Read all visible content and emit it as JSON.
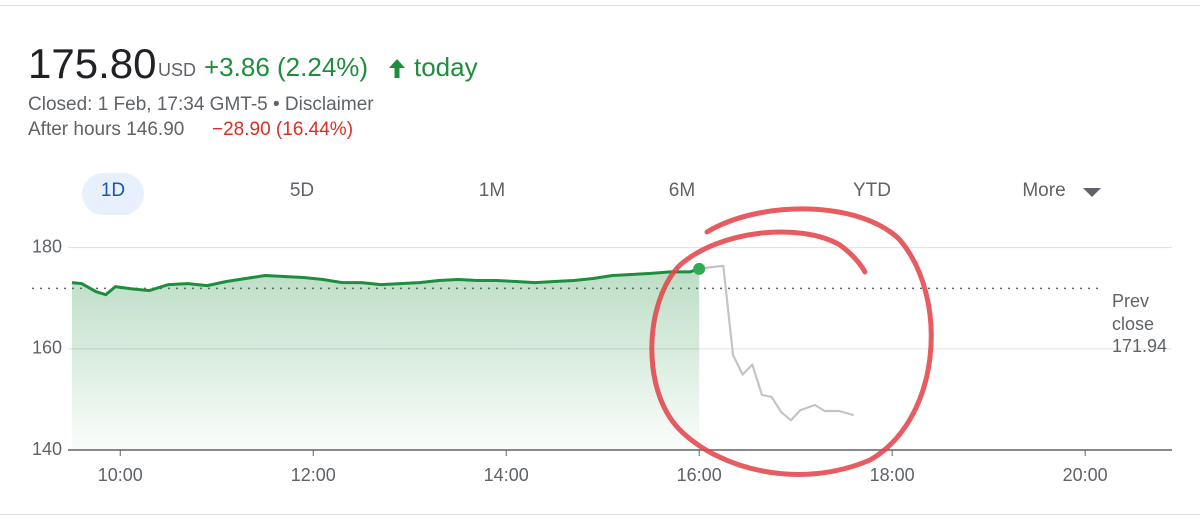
{
  "header": {
    "price": "175.80",
    "currency": "USD",
    "change": "+3.86 (2.24%)",
    "period": "today",
    "status": "Closed: 1 Feb, 17:34 GMT-5 • Disclaimer",
    "after_hours": "After hours 146.90",
    "after_hours_change": "−28.90 (16.44%)"
  },
  "tabs": [
    "1D",
    "5D",
    "1M",
    "6M",
    "YTD",
    "More"
  ],
  "chart_data": {
    "type": "line",
    "xlim": [
      9.5,
      20.9
    ],
    "xticks": [
      {
        "value": 10,
        "label": "10:00"
      },
      {
        "value": 12,
        "label": "12:00"
      },
      {
        "value": 14,
        "label": "14:00"
      },
      {
        "value": 16,
        "label": "16:00"
      },
      {
        "value": 18,
        "label": "18:00"
      },
      {
        "value": 20,
        "label": "20:00"
      }
    ],
    "ylim": [
      140,
      182.5
    ],
    "yticks": [
      140,
      160,
      180
    ],
    "grid": true,
    "prev_close": {
      "label": "Prev close",
      "value": 171.94
    },
    "series": [
      {
        "color": "#1e8e3e",
        "fill": true,
        "x": [
          9.5,
          9.6,
          9.75,
          9.85,
          9.95,
          10.1,
          10.3,
          10.5,
          10.7,
          10.9,
          11.1,
          11.3,
          11.5,
          11.7,
          11.9,
          12.1,
          12.3,
          12.5,
          12.7,
          12.9,
          13.1,
          13.3,
          13.5,
          13.7,
          13.9,
          14.1,
          14.3,
          14.5,
          14.7,
          14.9,
          15.1,
          15.3,
          15.5,
          15.7,
          15.9,
          16.0
        ],
        "values": [
          173.1,
          172.9,
          171.3,
          170.7,
          172.3,
          171.9,
          171.5,
          172.7,
          172.9,
          172.5,
          173.3,
          173.9,
          174.5,
          174.3,
          174.1,
          173.7,
          173.1,
          173.1,
          172.7,
          172.9,
          173.1,
          173.5,
          173.7,
          173.5,
          173.5,
          173.3,
          173.1,
          173.3,
          173.5,
          173.9,
          174.5,
          174.7,
          174.9,
          175.2,
          175.2,
          175.8
        ]
      },
      {
        "color": "#c4c4c4",
        "fill": false,
        "x": [
          16.0,
          16.15,
          16.25,
          16.35,
          16.45,
          16.55,
          16.65,
          16.75,
          16.85,
          16.95,
          17.05,
          17.2,
          17.3,
          17.45,
          17.6
        ],
        "values": [
          175.8,
          176.2,
          176.4,
          158.8,
          154.9,
          156.9,
          150.9,
          150.5,
          147.5,
          145.9,
          147.9,
          148.9,
          147.7,
          147.7,
          146.9
        ]
      }
    ]
  }
}
